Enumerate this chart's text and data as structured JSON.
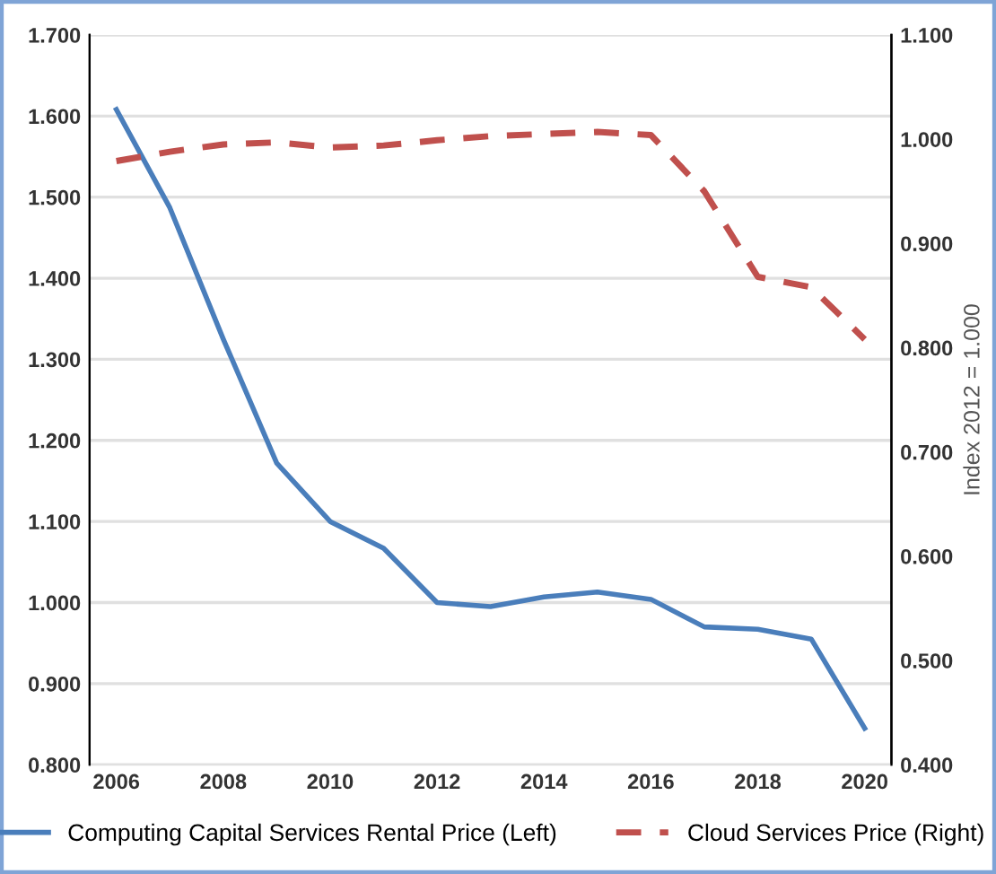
{
  "chart_data": {
    "type": "line",
    "x": [
      2006,
      2007,
      2008,
      2009,
      2010,
      2011,
      2012,
      2013,
      2014,
      2015,
      2016,
      2017,
      2018,
      2019,
      2020
    ],
    "series": [
      {
        "name": "Computing Capital Services Rental Price (Left)",
        "color": "#4a7ebb",
        "line_style": "solid",
        "values": [
          1.608,
          1.487,
          1.325,
          1.172,
          1.1,
          1.067,
          1.0,
          0.995,
          1.007,
          1.013,
          1.004,
          0.97,
          0.967,
          0.955,
          0.845
        ]
      },
      {
        "name": "Cloud Services Price (Right)",
        "color": "#c0504d",
        "line_style": "dashed",
        "axis": "y2",
        "values": [
          0.979,
          0.988,
          0.995,
          0.997,
          0.992,
          0.994,
          0.999,
          1.003,
          1.005,
          1.007,
          1.004,
          0.95,
          0.868,
          0.858,
          0.808
        ]
      }
    ],
    "xlim": [
      2005.5,
      2020.5
    ],
    "xticks": [
      2006,
      2008,
      2010,
      2012,
      2014,
      2016,
      2018,
      2020
    ],
    "ylim": [
      0.8,
      1.7
    ],
    "yticks": [
      {
        "value": 0.8,
        "label": "0.800"
      },
      {
        "value": 0.9,
        "label": "0.900"
      },
      {
        "value": 1.0,
        "label": "1.000"
      },
      {
        "value": 1.1,
        "label": "1.100"
      },
      {
        "value": 1.2,
        "label": "1.200"
      },
      {
        "value": 1.3,
        "label": "1.300"
      },
      {
        "value": 1.4,
        "label": "1.400"
      },
      {
        "value": 1.5,
        "label": "1.500"
      },
      {
        "value": 1.6,
        "label": "1.600"
      },
      {
        "value": 1.7,
        "label": "1.700"
      }
    ],
    "y2lim": [
      0.4,
      1.1
    ],
    "y2ticks": [
      {
        "value": 0.4,
        "label": "0.400"
      },
      {
        "value": 0.5,
        "label": "0.500"
      },
      {
        "value": 0.6,
        "label": "0.600"
      },
      {
        "value": 0.7,
        "label": "0.700"
      },
      {
        "value": 0.8,
        "label": "0.800"
      },
      {
        "value": 0.9,
        "label": "0.900"
      },
      {
        "value": 1.0,
        "label": "1.000"
      },
      {
        "value": 1.1,
        "label": "1.100"
      }
    ],
    "y2label": "Index 2012 = 1.000",
    "grid": "y",
    "legend": "bottom"
  }
}
